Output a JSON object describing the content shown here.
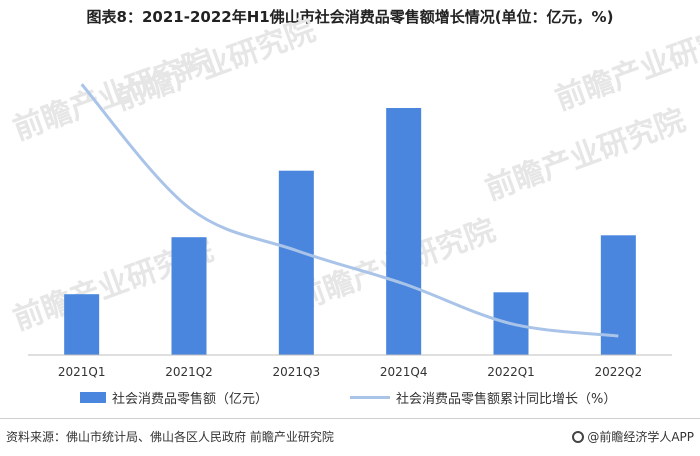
{
  "title": "图表8：2021-2022年H1佛山市社会消费品零售额增长情况(单位：亿元，%)",
  "chart_data": {
    "type": "bar",
    "categories": [
      "2021Q1",
      "2021Q2",
      "2021Q3",
      "2021Q4",
      "2022Q1",
      "2022Q2"
    ],
    "series": [
      {
        "name": "社会消费品零售额（亿元）",
        "type": "bar",
        "axis": "left",
        "color": "#4a86de",
        "values": [
          820,
          1120,
          1470,
          1800,
          830,
          1130
        ]
      },
      {
        "name": "社会消费品零售额累计同比增长（%）",
        "type": "line",
        "axis": "right",
        "color": "#a9c4e8",
        "values": [
          28.5,
          15.5,
          11.0,
          7.5,
          3.3,
          2.0
        ]
      }
    ],
    "ylim_left": [
      500,
      2000
    ],
    "ylim_right": [
      0,
      30
    ],
    "grid": false,
    "legend_position": "bottom"
  },
  "watermark": "前瞻产业研究院",
  "footer": {
    "source": "资料来源：佛山市统计局、佛山各区人民政府 前瞻产业研究院",
    "credit": "@前瞻经济学人APP"
  }
}
